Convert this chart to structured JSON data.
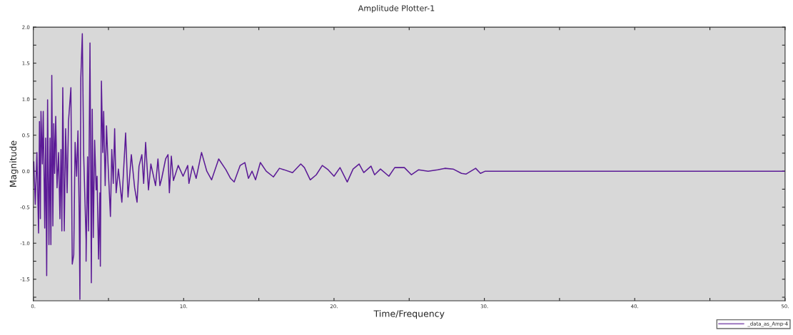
{
  "chart_data": {
    "type": "line",
    "title": "Amplitude Plotter-1",
    "xlabel": "Time/Frequency",
    "ylabel": "Magnitude",
    "xlim": [
      0,
      50
    ],
    "ylim": [
      -1.8,
      2.0
    ],
    "xticks": [
      {
        "value": 0,
        "label": "0."
      },
      {
        "value": 5,
        "label": null
      },
      {
        "value": 10,
        "label": "10."
      },
      {
        "value": 15,
        "label": null
      },
      {
        "value": 20,
        "label": "20."
      },
      {
        "value": 25,
        "label": null
      },
      {
        "value": 30,
        "label": "30."
      },
      {
        "value": 35,
        "label": null
      },
      {
        "value": 40,
        "label": "40."
      },
      {
        "value": 45,
        "label": null
      },
      {
        "value": 50,
        "label": "50."
      }
    ],
    "yticks": [
      {
        "value": -1.75,
        "label": null
      },
      -1.5,
      {
        "value": -1.25,
        "label": null
      },
      {
        "value": -1,
        "label": "-1.0"
      },
      {
        "value": -0.75,
        "label": null
      },
      -0.5,
      {
        "value": -0.25,
        "label": null
      },
      {
        "value": 0,
        "label": "0.0"
      },
      {
        "value": 0.25,
        "label": null
      },
      0.5,
      {
        "value": 0.75,
        "label": null
      },
      {
        "value": 1,
        "label": "1.0"
      },
      {
        "value": 1.25,
        "label": null
      },
      1.5,
      {
        "value": 1.75,
        "label": null
      },
      {
        "value": 2,
        "label": "2.0"
      }
    ],
    "grid": false,
    "legend": "bottom right",
    "marker": "none",
    "line_style": "solid",
    "series": [
      {
        "name": "_data_as_Amp-4",
        "color": "#5b1a96",
        "x": [
          0.03,
          0.13,
          0.24,
          0.35,
          0.41,
          0.47,
          0.51,
          0.6,
          0.66,
          0.76,
          0.82,
          0.89,
          0.95,
          1.04,
          1.11,
          1.17,
          1.23,
          1.3,
          1.36,
          1.42,
          1.49,
          1.58,
          1.68,
          1.77,
          1.84,
          1.9,
          1.96,
          2.06,
          2.15,
          2.25,
          2.34,
          2.5,
          2.59,
          2.69,
          2.78,
          2.88,
          2.97,
          3.05,
          3.1,
          3.16,
          3.26,
          3.35,
          3.51,
          3.51,
          3.61,
          3.67,
          3.77,
          3.86,
          3.92,
          3.99,
          4.08,
          4.18,
          4.24,
          4.34,
          4.43,
          4.46,
          4.53,
          4.62,
          4.68,
          4.78,
          4.87,
          4.97,
          5.13,
          5.22,
          5.32,
          5.41,
          5.51,
          5.66,
          5.89,
          6.14,
          6.3,
          6.52,
          6.74,
          6.9,
          7.03,
          7.22,
          7.34,
          7.47,
          7.66,
          7.82,
          8.13,
          8.29,
          8.42,
          8.54,
          8.8,
          8.96,
          9.05,
          9.18,
          9.32,
          9.64,
          9.96,
          10.27,
          10.35,
          10.59,
          10.83,
          11.19,
          11.54,
          11.86,
          12.33,
          12.81,
          13.12,
          13.36,
          13.76,
          14.07,
          14.31,
          14.55,
          14.78,
          15.1,
          15.49,
          15.97,
          16.37,
          16.68,
          17.24,
          17.79,
          18.03,
          18.42,
          18.82,
          19.22,
          19.61,
          20.0,
          20.4,
          20.88,
          21.27,
          21.67,
          21.98,
          22.46,
          22.7,
          23.09,
          23.65,
          24.04,
          24.68,
          25.15,
          25.63,
          26.26,
          26.89,
          27.37,
          27.92,
          28.48,
          28.79,
          29.42,
          29.74,
          30.06,
          50
        ],
        "values": [
          0.13,
          -0.46,
          0.26,
          -0.86,
          0.69,
          -0.66,
          0.83,
          0.1,
          0.83,
          -0.79,
          0.46,
          -1.45,
          0.99,
          -1.02,
          0.46,
          -1.02,
          1.33,
          -0.76,
          0.66,
          -0.03,
          0.76,
          -0.23,
          0.26,
          -0.66,
          0.3,
          -0.83,
          1.16,
          -0.83,
          0.59,
          -0.3,
          0.69,
          1.16,
          -1.29,
          -1.16,
          0.4,
          -0.07,
          0.56,
          -0.56,
          -1.78,
          1.29,
          1.91,
          0.23,
          -0.96,
          -1.25,
          0.2,
          -0.83,
          1.78,
          -1.55,
          0.86,
          -0.92,
          0.43,
          -0.26,
          -0.07,
          -1.22,
          -0.3,
          -1.32,
          1.25,
          0.26,
          0.83,
          -0.2,
          0.63,
          0.1,
          -0.63,
          0.3,
          -0.17,
          0.59,
          -0.3,
          0.03,
          -0.43,
          0.53,
          -0.36,
          0.23,
          -0.23,
          -0.43,
          0.07,
          0.23,
          -0.17,
          0.4,
          -0.26,
          0.1,
          -0.2,
          0.17,
          -0.2,
          -0.1,
          0.17,
          0.23,
          -0.3,
          0.21,
          -0.13,
          0.08,
          -0.07,
          0.08,
          -0.17,
          0.07,
          -0.1,
          0.26,
          0.0,
          -0.12,
          0.17,
          0.02,
          -0.1,
          -0.15,
          0.08,
          0.12,
          -0.1,
          0.0,
          -0.12,
          0.12,
          0.0,
          -0.08,
          0.04,
          0.02,
          -0.02,
          0.1,
          0.05,
          -0.12,
          -0.05,
          0.08,
          0.02,
          -0.07,
          0.05,
          -0.15,
          0.03,
          0.1,
          -0.02,
          0.07,
          -0.05,
          0.03,
          -0.07,
          0.05,
          0.05,
          -0.05,
          0.02,
          0.0,
          0.02,
          0.04,
          0.03,
          -0.03,
          -0.04,
          0.04,
          -0.03,
          0.0,
          0.0
        ]
      }
    ]
  }
}
